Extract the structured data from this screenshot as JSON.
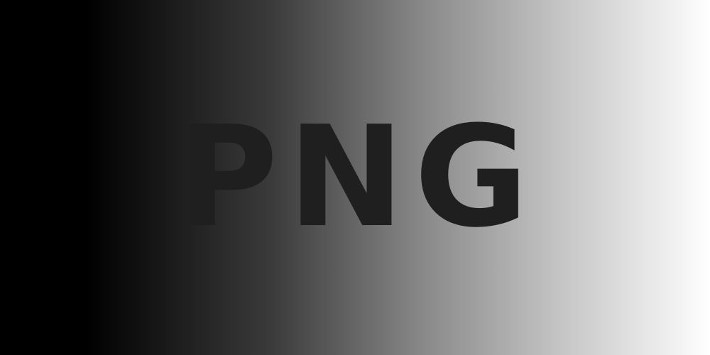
{
  "image": {
    "text": "PNG",
    "colors": {
      "text": "#1f1f1f",
      "gradient_start": "#000000",
      "gradient_end": "#ffffff"
    }
  }
}
